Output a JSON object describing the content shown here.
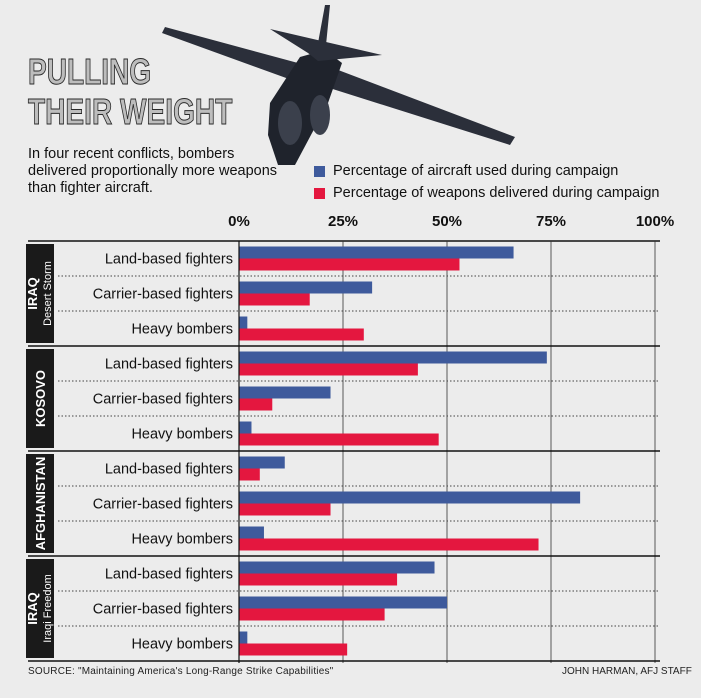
{
  "title": "PULLING\nTHEIR WEIGHT",
  "subtitle": "In four recent conflicts, bombers delivered proportionally more weapons than fighter aircraft.",
  "colors": {
    "aircraft": "#3e5a9c",
    "weapons": "#e4173f",
    "group_band": "#1a1a1a"
  },
  "chart_data": {
    "type": "bar",
    "orientation": "horizontal",
    "xlim": [
      0,
      100
    ],
    "x_ticks": [
      "0%",
      "25%",
      "50%",
      "75%",
      "100%"
    ],
    "grid": true,
    "legend_position": "top-right",
    "series": [
      {
        "name": "Percentage of aircraft used during campaign"
      },
      {
        "name": "Percentage of weapons delivered during campaign"
      }
    ],
    "groups": [
      {
        "label": "IRAQ",
        "sublabel": "Desert Storm",
        "rows": [
          {
            "category": "Land-based fighters",
            "aircraft": 66,
            "weapons": 53
          },
          {
            "category": "Carrier-based fighters",
            "aircraft": 32,
            "weapons": 17
          },
          {
            "category": "Heavy bombers",
            "aircraft": 2,
            "weapons": 30
          }
        ]
      },
      {
        "label": "KOSOVO",
        "sublabel": "",
        "rows": [
          {
            "category": "Land-based fighters",
            "aircraft": 74,
            "weapons": 43
          },
          {
            "category": "Carrier-based fighters",
            "aircraft": 22,
            "weapons": 8
          },
          {
            "category": "Heavy bombers",
            "aircraft": 3,
            "weapons": 48
          }
        ]
      },
      {
        "label": "AFGHANISTAN",
        "sublabel": "",
        "rows": [
          {
            "category": "Land-based fighters",
            "aircraft": 11,
            "weapons": 5
          },
          {
            "category": "Carrier-based fighters",
            "aircraft": 82,
            "weapons": 22
          },
          {
            "category": "Heavy bombers",
            "aircraft": 6,
            "weapons": 72
          }
        ]
      },
      {
        "label": "IRAQ",
        "sublabel": "Iraqi Freedom",
        "rows": [
          {
            "category": "Land-based fighters",
            "aircraft": 47,
            "weapons": 38
          },
          {
            "category": "Carrier-based fighters",
            "aircraft": 50,
            "weapons": 35
          },
          {
            "category": "Heavy bombers",
            "aircraft": 2,
            "weapons": 26
          }
        ]
      }
    ]
  },
  "source": "SOURCE: \"Maintaining America's Long-Range Strike Capabilities\"",
  "credit": "JOHN HARMAN, AFJ STAFF"
}
